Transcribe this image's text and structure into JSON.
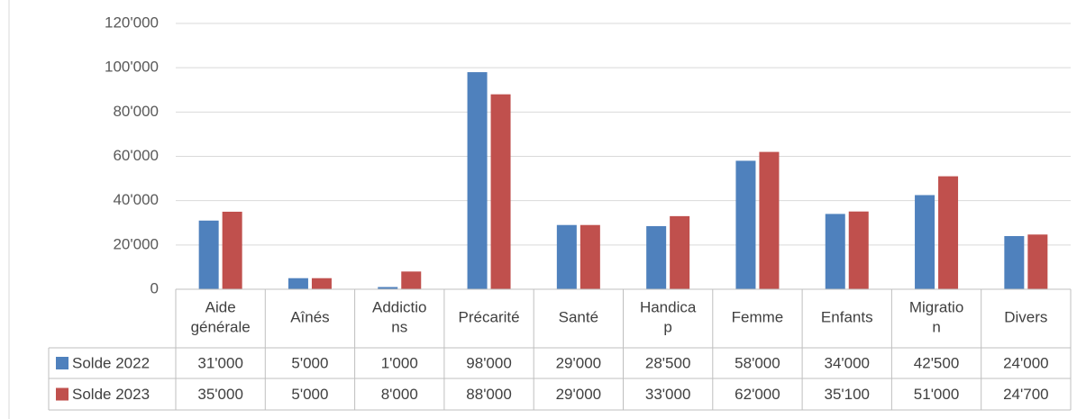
{
  "chart_data": {
    "type": "bar",
    "categories": [
      "Aide générale",
      "Aînés",
      "Addictions",
      "Précarité",
      "Santé",
      "Handicap",
      "Femme",
      "Enfants",
      "Migration",
      "Divers"
    ],
    "series": [
      {
        "name": "Solde 2022",
        "color": "#4f81bd",
        "values": [
          31000,
          5000,
          1000,
          98000,
          29000,
          28500,
          58000,
          34000,
          42500,
          24000
        ],
        "value_labels": [
          "31'000",
          "5'000",
          "1'000",
          "98'000",
          "29'000",
          "28'500",
          "58'000",
          "34'000",
          "42'500",
          "24'000"
        ]
      },
      {
        "name": "Solde 2023",
        "color": "#c0504d",
        "values": [
          35000,
          5000,
          8000,
          88000,
          29000,
          33000,
          62000,
          35100,
          51000,
          24700
        ],
        "value_labels": [
          "35'000",
          "5'000",
          "8'000",
          "88'000",
          "29'000",
          "33'000",
          "62'000",
          "35'100",
          "51'000",
          "24'700"
        ]
      }
    ],
    "ylim": [
      0,
      120000
    ],
    "yticks": [
      0,
      {
        "value": 20000,
        "label": "20'000"
      },
      {
        "value": 40000,
        "label": "40'000"
      },
      {
        "value": 60000,
        "label": "60'000"
      },
      {
        "value": 80000,
        "label": "80'000"
      },
      {
        "value": 100000,
        "label": "100'000"
      },
      {
        "value": 120000,
        "label": "120'000"
      }
    ],
    "grid": true,
    "data_table": true
  }
}
